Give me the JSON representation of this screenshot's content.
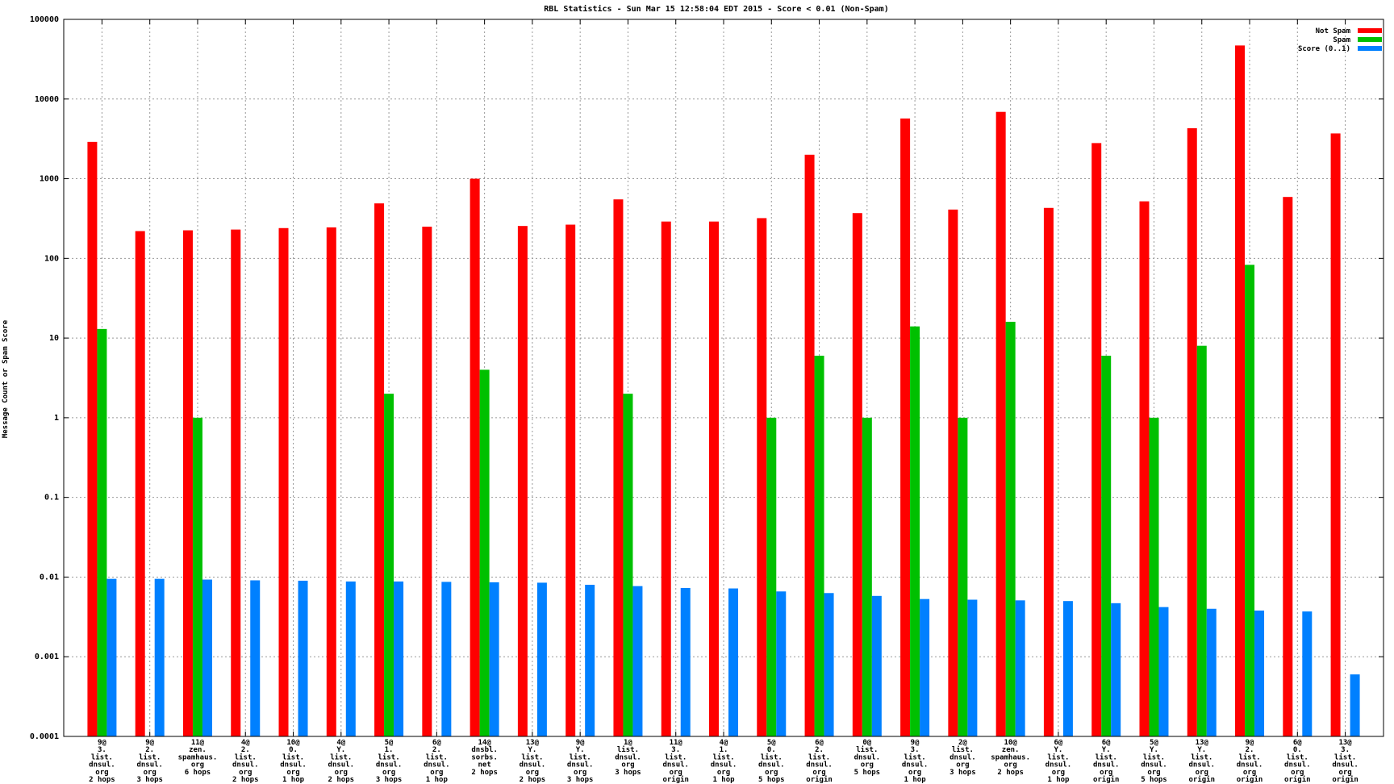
{
  "chart_data": {
    "type": "bar",
    "title": "RBL Statistics - Sun Mar 15 12:58:04 EDT 2015 - Score < 0.01 (Non-Spam)",
    "xlabel": "",
    "ylabel": "Message Count or Spam Score",
    "yscale": "log",
    "ylim": [
      0.0001,
      100000
    ],
    "yticks": [
      "0.0001",
      "0.001",
      "0.01",
      "0.1",
      "1",
      "10",
      "100",
      "1000",
      "10000",
      "100000"
    ],
    "grid": true,
    "legend_position": "top-right",
    "categories": [
      [
        "9@",
        "3.",
        "list.",
        "dnsul.",
        "org",
        "2 hops"
      ],
      [
        "9@",
        "2.",
        "list.",
        "dnsul.",
        "org",
        "3 hops"
      ],
      [
        "11@",
        "zen.",
        "spamhaus.",
        "org",
        "6 hops"
      ],
      [
        "4@",
        "2.",
        "list.",
        "dnsul.",
        "org",
        "2 hops"
      ],
      [
        "10@",
        "0.",
        "list.",
        "dnsul.",
        "org",
        "1 hop"
      ],
      [
        "4@",
        "Y.",
        "list.",
        "dnsul.",
        "org",
        "2 hops"
      ],
      [
        "5@",
        "1.",
        "list.",
        "dnsul.",
        "org",
        "3 hops"
      ],
      [
        "6@",
        "2.",
        "list.",
        "dnsul.",
        "org",
        "1 hop"
      ],
      [
        "14@",
        "dnsbl.",
        "sorbs.",
        "net",
        "2 hops"
      ],
      [
        "13@",
        "Y.",
        "list.",
        "dnsul.",
        "org",
        "2 hops"
      ],
      [
        "9@",
        "Y.",
        "list.",
        "dnsul.",
        "org",
        "3 hops"
      ],
      [
        "1@",
        "list.",
        "dnsul.",
        "org",
        "3 hops"
      ],
      [
        "11@",
        "3.",
        "list.",
        "dnsul.",
        "org",
        "origin"
      ],
      [
        "4@",
        "1.",
        "list.",
        "dnsul.",
        "org",
        "1 hop"
      ],
      [
        "5@",
        "0.",
        "list.",
        "dnsul.",
        "org",
        "5 hops"
      ],
      [
        "6@",
        "2.",
        "list.",
        "dnsul.",
        "org",
        "origin"
      ],
      [
        "0@",
        "list.",
        "dnsul.",
        "org",
        "5 hops"
      ],
      [
        "9@",
        "3.",
        "list.",
        "dnsul.",
        "org",
        "1 hop"
      ],
      [
        "2@",
        "list.",
        "dnsul.",
        "org",
        "3 hops"
      ],
      [
        "10@",
        "zen.",
        "spamhaus.",
        "org",
        "2 hops"
      ],
      [
        "6@",
        "Y.",
        "list.",
        "dnsul.",
        "org",
        "1 hop"
      ],
      [
        "6@",
        "Y.",
        "list.",
        "dnsul.",
        "org",
        "origin"
      ],
      [
        "5@",
        "Y.",
        "list.",
        "dnsul.",
        "org",
        "5 hops"
      ],
      [
        "13@",
        "Y.",
        "list.",
        "dnsul.",
        "org",
        "origin"
      ],
      [
        "9@",
        "2.",
        "list.",
        "dnsul.",
        "org",
        "origin"
      ],
      [
        "6@",
        "0.",
        "list.",
        "dnsul.",
        "org",
        "origin"
      ],
      [
        "13@",
        "3.",
        "list.",
        "dnsul.",
        "org",
        "origin"
      ]
    ],
    "series": [
      {
        "name": "Not Spam",
        "color": "#ff0000",
        "values": [
          2900,
          220,
          225,
          230,
          240,
          245,
          490,
          250,
          1000,
          255,
          265,
          550,
          290,
          290,
          320,
          2000,
          370,
          5700,
          410,
          6900,
          430,
          2800,
          520,
          4300,
          47000,
          590,
          3700
        ]
      },
      {
        "name": "Spam",
        "color": "#00c000",
        "values": [
          13,
          null,
          1,
          null,
          null,
          null,
          2,
          null,
          4,
          null,
          null,
          2,
          null,
          null,
          1,
          6,
          1,
          14,
          1,
          16,
          null,
          6,
          1,
          8,
          83,
          null,
          null
        ]
      },
      {
        "name": "Score (0..1)",
        "color": "#0080ff",
        "values": [
          0.0095,
          0.0095,
          0.0093,
          0.0091,
          0.009,
          0.0088,
          0.0088,
          0.0087,
          0.0086,
          0.0085,
          0.008,
          0.0077,
          0.0073,
          0.0072,
          0.0066,
          0.0063,
          0.0058,
          0.0053,
          0.0052,
          0.0051,
          0.005,
          0.0047,
          0.0042,
          0.004,
          0.0038,
          0.0037,
          0.0006
        ]
      }
    ]
  }
}
